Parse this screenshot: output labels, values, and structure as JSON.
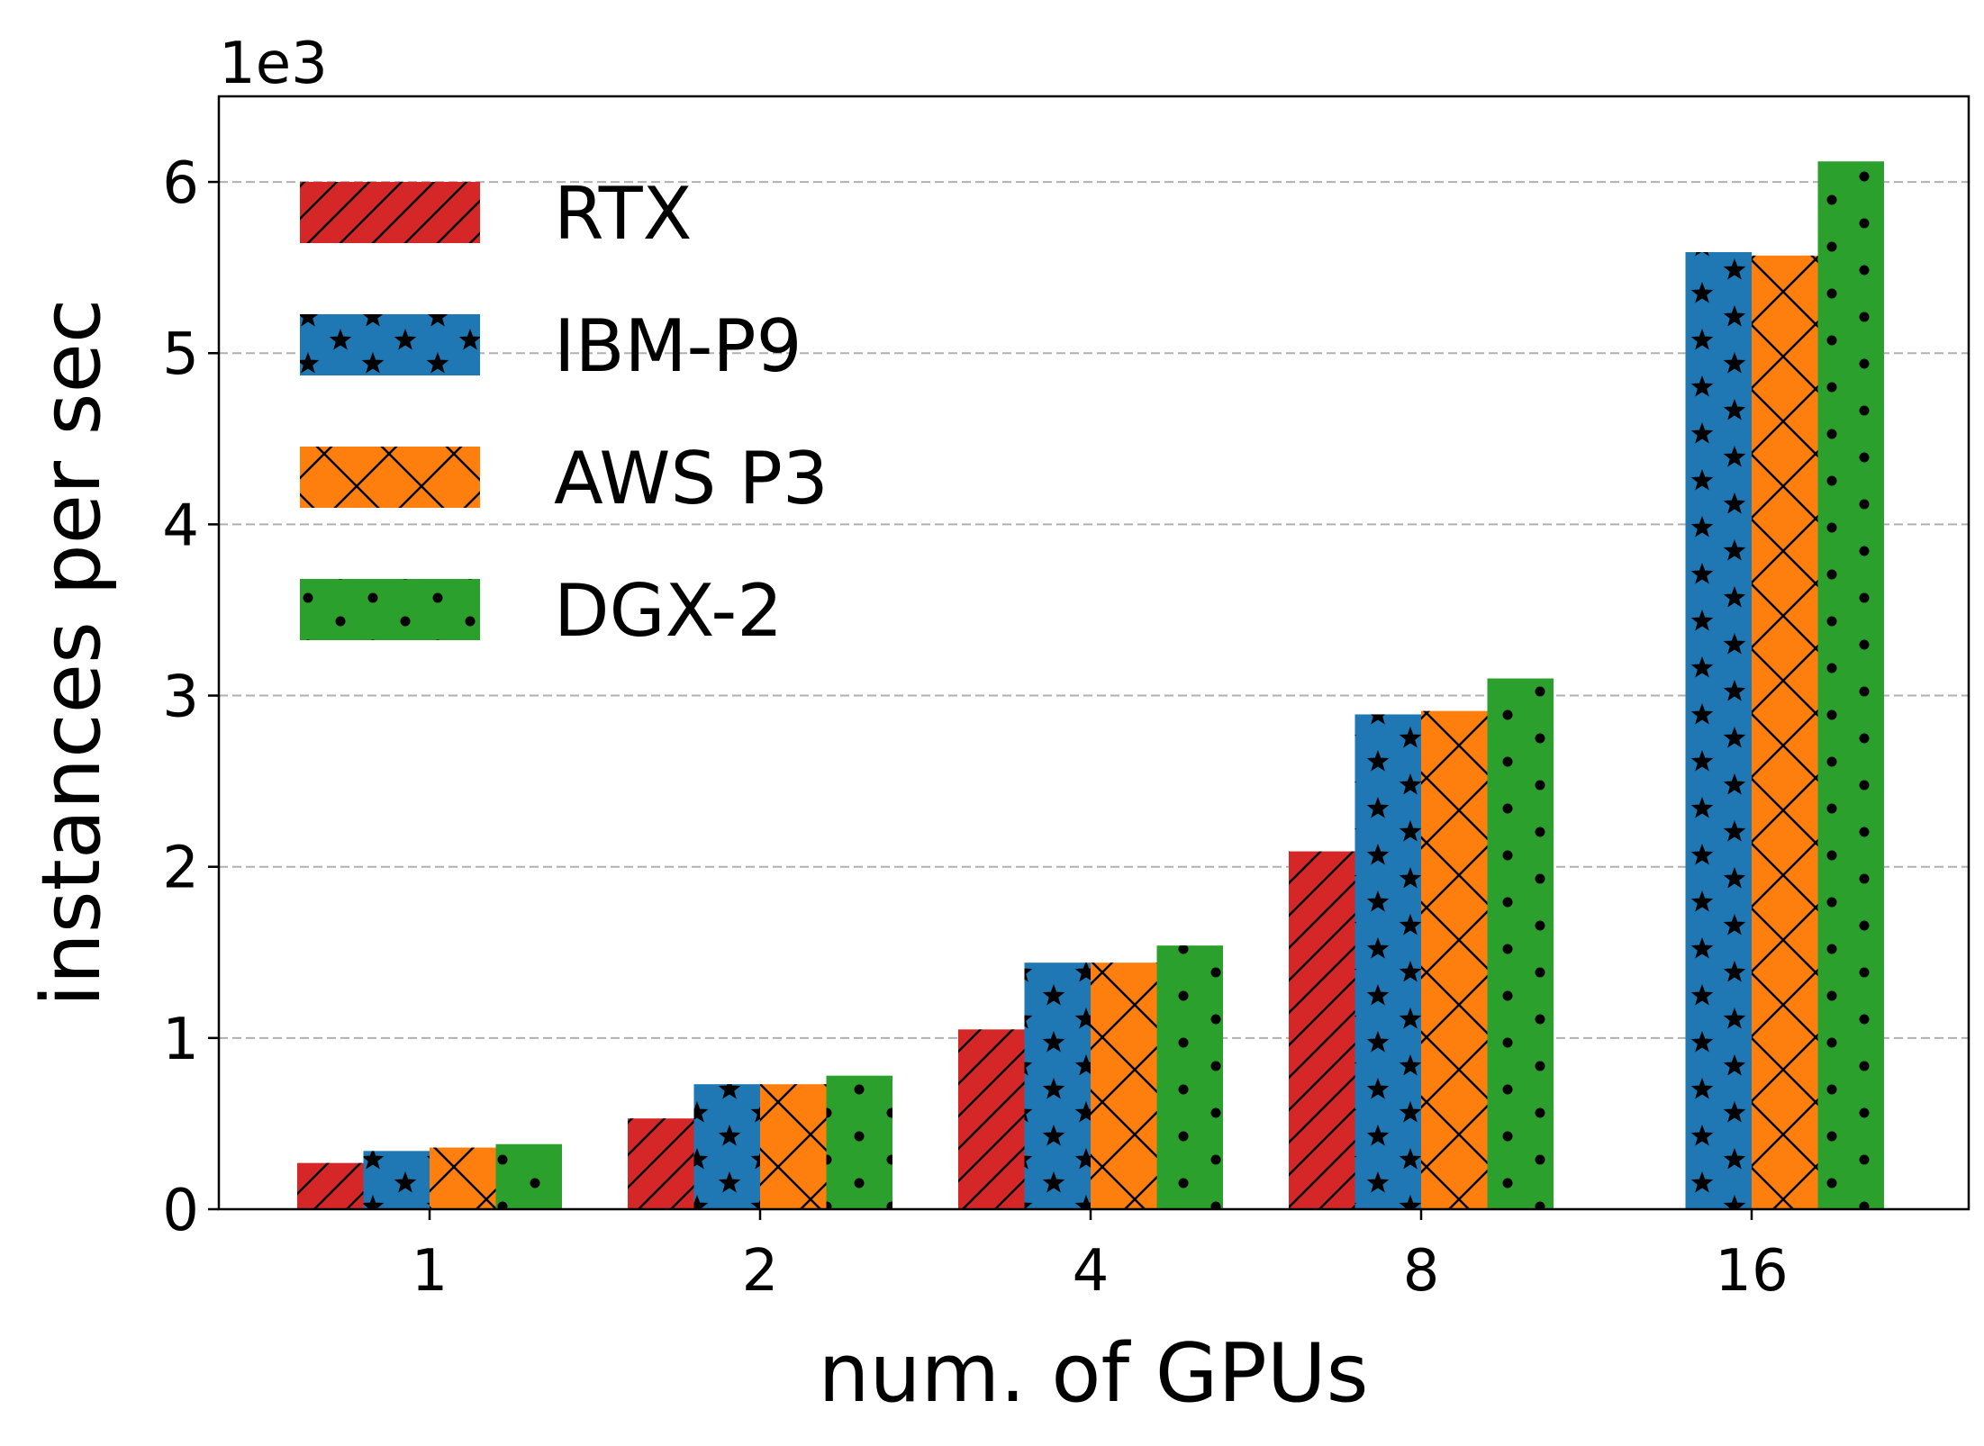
{
  "chart_data": {
    "type": "bar",
    "title": "",
    "xlabel": "num. of GPUs",
    "ylabel": "instances per sec",
    "y_offset_label": "1e3",
    "categories": [
      "1",
      "2",
      "4",
      "8",
      "16"
    ],
    "yticks": [
      0,
      1,
      2,
      3,
      4,
      5,
      6
    ],
    "ylim": [
      0,
      6.5
    ],
    "grid": "y-dashed",
    "legend_position": "top-left",
    "series": [
      {
        "name": "RTX",
        "color": "#d62728",
        "hatch": "diagonal",
        "values": [
          0.27,
          0.53,
          1.05,
          2.09,
          null
        ]
      },
      {
        "name": "IBM-P9",
        "color": "#1f77b4",
        "hatch": "star",
        "values": [
          0.34,
          0.73,
          1.44,
          2.89,
          5.59
        ]
      },
      {
        "name": "AWS P3",
        "color": "#ff7f0e",
        "hatch": "cross",
        "values": [
          0.36,
          0.73,
          1.44,
          2.91,
          5.57
        ]
      },
      {
        "name": "DGX-2",
        "color": "#2ca02c",
        "hatch": "dot",
        "values": [
          0.38,
          0.78,
          1.54,
          3.1,
          6.12
        ]
      }
    ]
  }
}
